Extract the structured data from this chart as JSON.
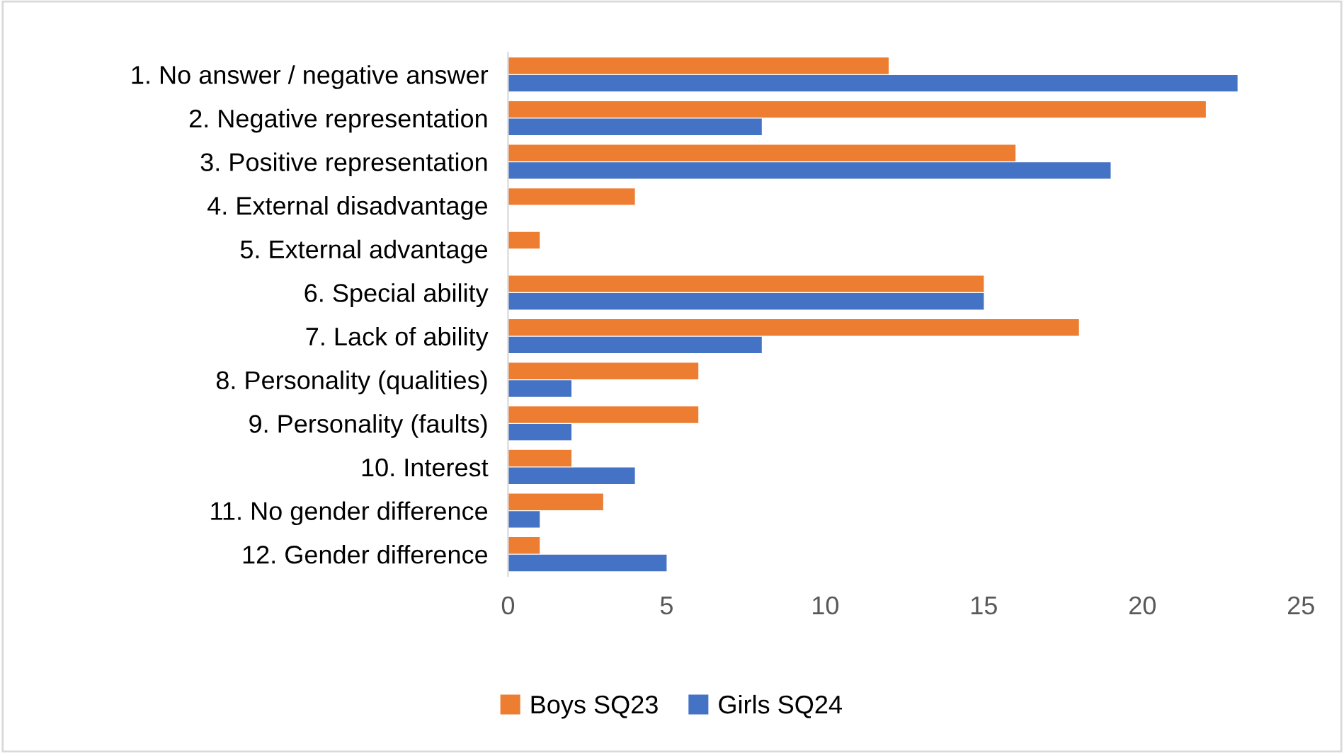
{
  "chart_data": {
    "type": "bar",
    "orientation": "horizontal",
    "categories": [
      "1. No answer / negative answer",
      "2. Negative representation",
      "3. Positive representation",
      "4. External disadvantage",
      "5. External advantage",
      "6. Special ability",
      "7. Lack of ability",
      "8. Personality (qualities)",
      "9. Personality (faults)",
      "10. Interest",
      "11. No gender difference",
      "12. Gender difference"
    ],
    "series": [
      {
        "name": "Boys SQ23",
        "color": "#ed7d31",
        "values": [
          12,
          22,
          16,
          4,
          1,
          15,
          18,
          6,
          6,
          2,
          3,
          1
        ]
      },
      {
        "name": "Girls SQ24",
        "color": "#4472c4",
        "values": [
          23,
          8,
          19,
          0,
          0,
          15,
          8,
          2,
          2,
          4,
          1,
          5
        ]
      }
    ],
    "xlim": [
      0,
      25
    ],
    "xticks": [
      0,
      5,
      10,
      15,
      20,
      25
    ],
    "grid": false,
    "legend": "bottom"
  }
}
